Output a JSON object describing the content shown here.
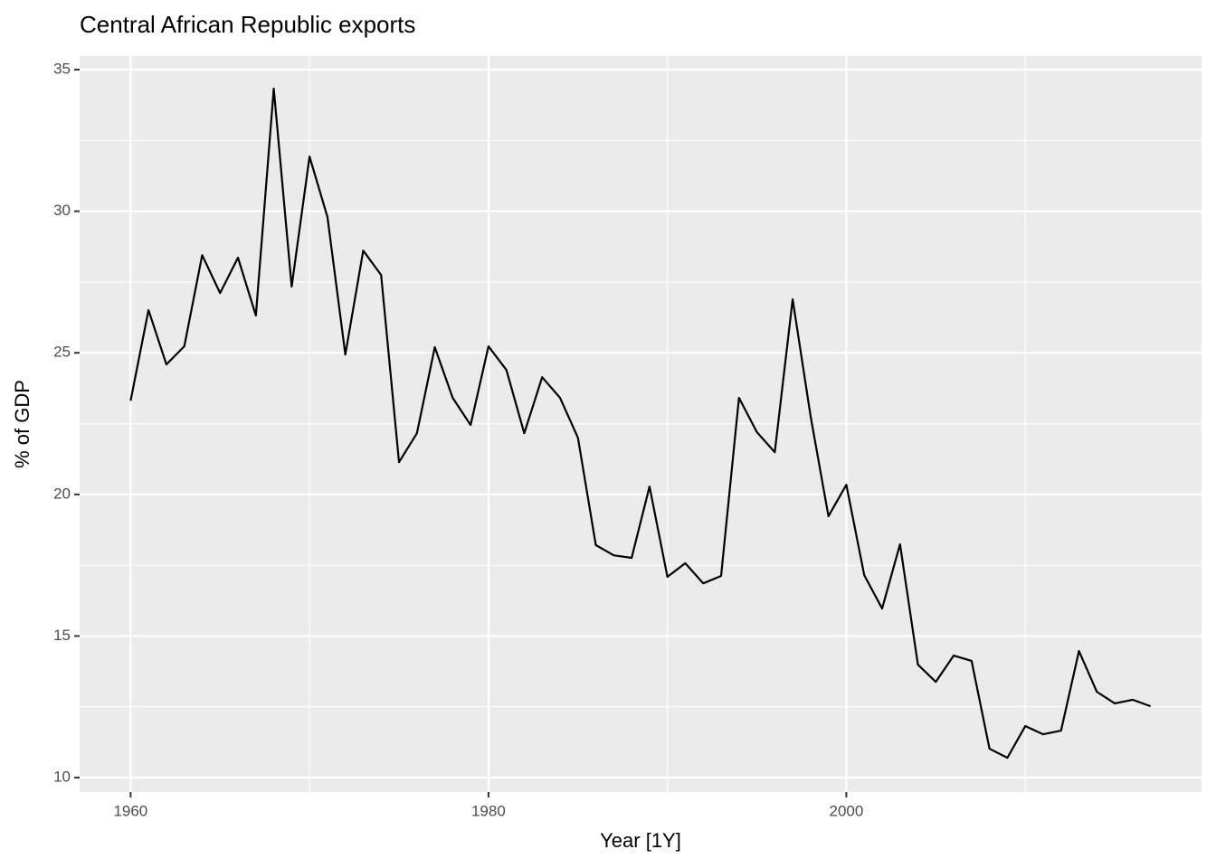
{
  "chart_data": {
    "type": "line",
    "title": "Central African Republic exports",
    "x_label": "Year [1Y]",
    "y_label": "% of GDP",
    "x": [
      1960,
      1961,
      1962,
      1963,
      1964,
      1965,
      1966,
      1967,
      1968,
      1969,
      1970,
      1971,
      1972,
      1973,
      1974,
      1975,
      1976,
      1977,
      1978,
      1979,
      1980,
      1981,
      1982,
      1983,
      1984,
      1985,
      1986,
      1987,
      1988,
      1989,
      1990,
      1991,
      1992,
      1993,
      1994,
      1995,
      1996,
      1997,
      1998,
      1999,
      2000,
      2001,
      2002,
      2003,
      2004,
      2005,
      2006,
      2007,
      2008,
      2009,
      2010,
      2011,
      2012,
      2013,
      2014,
      2015,
      2016,
      2017
    ],
    "series": [
      {
        "name": "Exports",
        "color": "#000000",
        "values": [
          23.31,
          26.51,
          24.59,
          25.23,
          28.45,
          27.11,
          28.36,
          26.32,
          34.33,
          27.34,
          31.93,
          29.8,
          24.94,
          28.61,
          27.75,
          21.14,
          22.16,
          25.2,
          23.41,
          22.45,
          25.23,
          24.4,
          22.16,
          24.14,
          23.41,
          22.0,
          18.21,
          17.85,
          17.76,
          20.28,
          17.09,
          17.57,
          16.86,
          17.12,
          23.41,
          22.2,
          21.49,
          26.89,
          22.77,
          19.23,
          20.34,
          17.15,
          15.97,
          18.24,
          13.99,
          13.38,
          14.31,
          14.12,
          11.02,
          10.7,
          11.82,
          11.53,
          11.66,
          14.47,
          13.03,
          12.62,
          12.75,
          12.52
        ]
      }
    ],
    "xlim": [
      1957.15,
      2019.85
    ],
    "ylim": [
      9.49,
      35.48
    ],
    "xticks": [
      1960,
      1980,
      2000
    ],
    "yticks": [
      10,
      15,
      20,
      25,
      30,
      35
    ],
    "x_minor_ticks": [
      1970,
      1990,
      2010
    ],
    "y_minor_ticks": [
      12.5,
      17.5,
      22.5,
      27.5,
      32.5
    ],
    "grid": true
  }
}
